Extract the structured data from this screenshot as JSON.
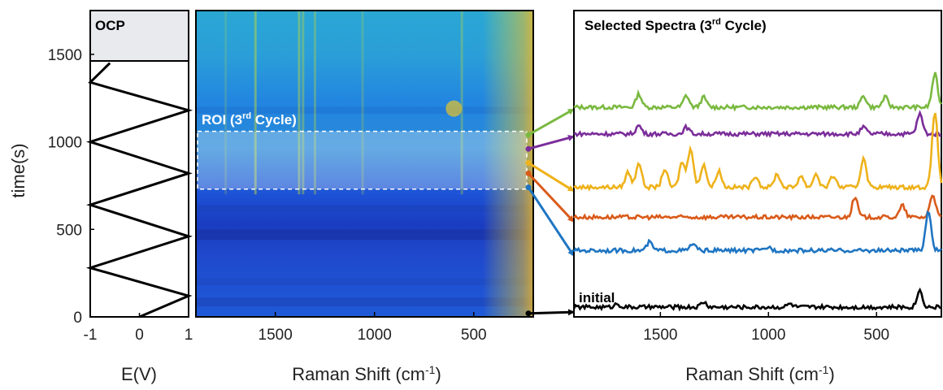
{
  "chart_data": [
    {
      "type": "line",
      "panel": "potential",
      "xlabel": "E(V)",
      "ylabel": "time(s)",
      "xlim": [
        -1,
        1
      ],
      "ylim": [
        0,
        1750
      ],
      "x_ticks": [
        "-1",
        "0",
        "1"
      ],
      "y_ticks": [
        "0",
        "500",
        "1000",
        "1500"
      ],
      "annotation": "OCP",
      "ocp_start_time": 1450,
      "series": [
        {
          "color": "#000000",
          "points": [
            [
              0,
              0
            ],
            [
              1,
              120
            ],
            [
              -1,
              280
            ],
            [
              1,
              460
            ],
            [
              -1,
              640
            ],
            [
              1,
              820
            ],
            [
              -1,
              1000
            ],
            [
              1,
              1180
            ],
            [
              -1,
              1340
            ],
            [
              -0.6,
              1450
            ]
          ]
        }
      ]
    },
    {
      "type": "heatmap",
      "panel": "raman-map",
      "xlabel": "Raman Shift (cm",
      "xlabel_sup": "-1",
      "xlabel_end": ")",
      "xlim": [
        1900,
        200
      ],
      "ylim": [
        0,
        1750
      ],
      "x_ticks": [
        "1500",
        "1000",
        "500"
      ],
      "colormap": [
        "#1c2fb8",
        "#1f6fe8",
        "#1fa4dc",
        "#45c4b0",
        "#d9c63a",
        "#f7e21f"
      ],
      "roi_label": "ROI (3",
      "roi_label_sup": "rd",
      "roi_label_end": " Cycle)",
      "roi_time_range": [
        730,
        1060
      ]
    },
    {
      "type": "line",
      "panel": "selected-spectra",
      "title": "Selected Spectra (3",
      "title_sup": "rd",
      "title_end": " Cycle)",
      "xlabel": "Raman Shift (cm",
      "xlabel_sup": "-1",
      "xlabel_end": ")",
      "xlim": [
        1900,
        200
      ],
      "x_ticks": [
        "1500",
        "1000",
        "500"
      ],
      "annotation": "initial",
      "series": [
        {
          "color": "#7ab940",
          "offset": 6.0,
          "peaks": [
            [
              1600,
              0.4
            ],
            [
              1380,
              0.35
            ],
            [
              1300,
              0.3
            ],
            [
              560,
              0.35
            ],
            [
              460,
              0.3
            ],
            [
              230,
              1.0
            ]
          ]
        },
        {
          "color": "#7b2d9a",
          "offset": 5.2,
          "peaks": [
            [
              1600,
              0.25
            ],
            [
              1380,
              0.2
            ],
            [
              560,
              0.2
            ],
            [
              300,
              0.6
            ]
          ]
        },
        {
          "color": "#eeb21b",
          "offset": 3.6,
          "peaks": [
            [
              1650,
              0.45
            ],
            [
              1600,
              0.75
            ],
            [
              1480,
              0.55
            ],
            [
              1400,
              0.75
            ],
            [
              1360,
              1.2
            ],
            [
              1300,
              0.7
            ],
            [
              1230,
              0.5
            ],
            [
              1060,
              0.35
            ],
            [
              960,
              0.4
            ],
            [
              850,
              0.35
            ],
            [
              780,
              0.4
            ],
            [
              700,
              0.35
            ],
            [
              560,
              0.9
            ],
            [
              230,
              2.3
            ]
          ]
        },
        {
          "color": "#d95b1a",
          "offset": 2.7,
          "peaks": [
            [
              600,
              0.6
            ],
            [
              380,
              0.35
            ],
            [
              240,
              0.7
            ]
          ]
        },
        {
          "color": "#1f75c2",
          "offset": 1.7,
          "peaks": [
            [
              1550,
              0.25
            ],
            [
              1350,
              0.2
            ],
            [
              1000,
              0.1
            ],
            [
              260,
              1.2
            ]
          ]
        },
        {
          "color": "#000000",
          "offset": 0.0,
          "peaks": [
            [
              1700,
              0.1
            ],
            [
              1300,
              0.15
            ],
            [
              900,
              0.1
            ],
            [
              300,
              0.5
            ]
          ]
        }
      ]
    }
  ]
}
